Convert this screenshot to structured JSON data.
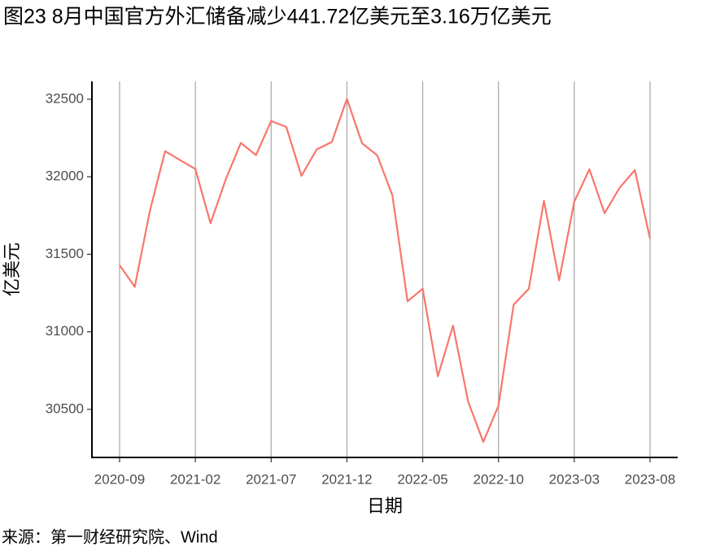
{
  "chart_data": {
    "type": "line",
    "title": "图23 8月中国官方外汇储备减少441.72亿美元至3.16万亿美元",
    "x_label": "日期",
    "y_label": "亿美元",
    "source": "来源：第一财经研究院、Wind",
    "categories": [
      "2020-09",
      null,
      null,
      null,
      null,
      "2021-02",
      null,
      null,
      null,
      null,
      "2021-07",
      null,
      null,
      null,
      null,
      "2021-12",
      null,
      null,
      null,
      null,
      "2022-05",
      null,
      null,
      null,
      null,
      "2022-10",
      null,
      null,
      null,
      null,
      "2023-03",
      null,
      null,
      null,
      null,
      "2023-08"
    ],
    "values": [
      31430,
      31290,
      31780,
      32165,
      32107,
      32050,
      31700,
      31982,
      32218,
      32140,
      32359,
      32321,
      32006,
      32176,
      32224,
      32502,
      32216,
      32138,
      31880,
      31197,
      31278,
      30713,
      31040,
      30549,
      30290,
      30524,
      31175,
      31277,
      31845,
      31332,
      31839,
      32048,
      31765,
      31930,
      32043,
      31601
    ],
    "color": "#f8766d",
    "ylim": [
      30190,
      32615
    ],
    "yticks": [
      30500,
      31000,
      31500,
      32000,
      32500
    ],
    "grid": true
  }
}
